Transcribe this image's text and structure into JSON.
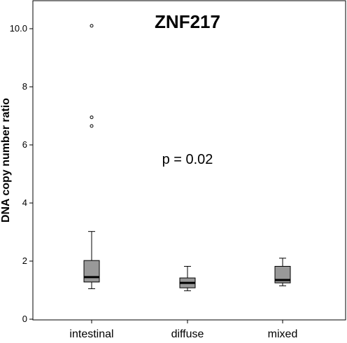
{
  "chart_data": {
    "type": "boxplot",
    "title": "ZNF217",
    "ylabel": "DNA copy number ratio",
    "xlabel": "",
    "ylim": [
      0,
      11
    ],
    "yticks": [
      0,
      2,
      4,
      6,
      8,
      10
    ],
    "ytick_labels": [
      "0-",
      "2-",
      "4-",
      "6-",
      "8-",
      "10.0-"
    ],
    "annotation": "p = 0.02",
    "box_color": "#999999",
    "categories": [
      "intestinal",
      "diffuse",
      "mixed"
    ],
    "boxes": [
      {
        "category": "intestinal",
        "whisker_low": 1.05,
        "q1": 1.28,
        "median": 1.45,
        "q3": 2.02,
        "whisker_high": 3.02,
        "outliers": [
          6.65,
          6.95,
          10.1
        ]
      },
      {
        "category": "diffuse",
        "whisker_low": 0.98,
        "q1": 1.08,
        "median": 1.25,
        "q3": 1.42,
        "whisker_high": 1.82,
        "outliers": []
      },
      {
        "category": "mixed",
        "whisker_low": 1.15,
        "q1": 1.25,
        "median": 1.35,
        "q3": 1.82,
        "whisker_high": 2.1,
        "outliers": []
      }
    ]
  }
}
